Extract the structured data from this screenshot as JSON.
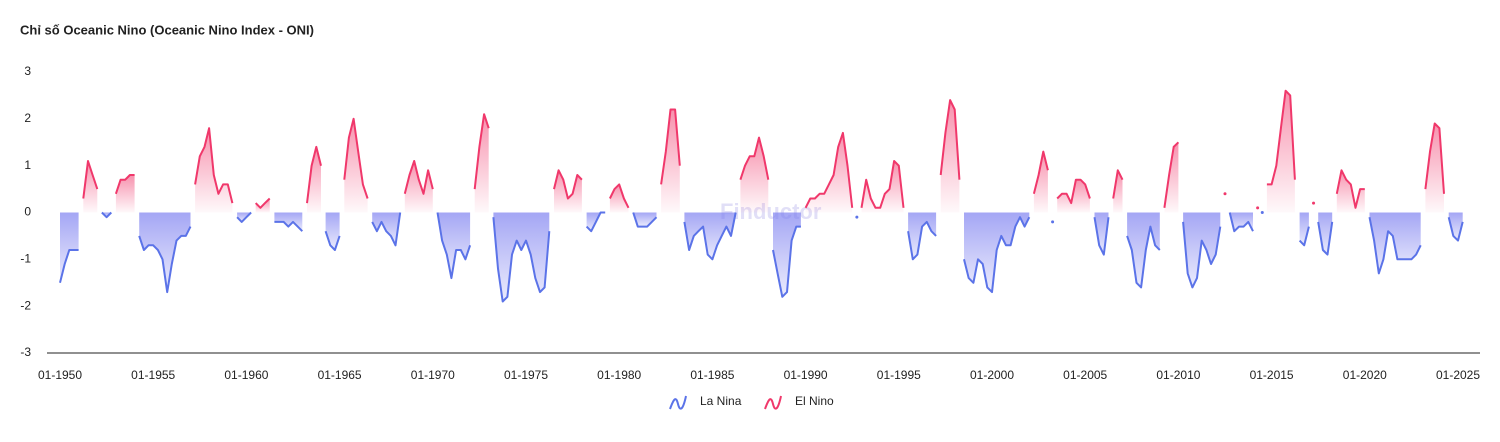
{
  "chart_data": {
    "type": "line",
    "title": "Chỉ số Oceanic Nino (Oceanic Nino Index - ONI)",
    "watermark": "Finductor",
    "x": [
      "01-1950",
      "04-1950",
      "07-1950",
      "10-1950",
      "01-1951",
      "04-1951",
      "07-1951",
      "10-1951",
      "01-1952",
      "04-1952",
      "07-1952",
      "10-1952",
      "01-1953",
      "04-1953",
      "07-1953",
      "10-1953",
      "01-1954",
      "04-1954",
      "07-1954",
      "10-1954",
      "01-1955",
      "04-1955",
      "07-1955",
      "10-1955",
      "01-1956",
      "04-1956",
      "07-1956",
      "10-1956",
      "01-1957",
      "04-1957",
      "07-1957",
      "10-1957",
      "01-1958",
      "04-1958",
      "07-1958",
      "10-1958",
      "01-1959",
      "04-1959",
      "07-1959",
      "10-1959",
      "01-1960",
      "04-1960",
      "07-1960",
      "10-1960",
      "01-1961",
      "04-1961",
      "07-1961",
      "10-1961",
      "01-1962",
      "04-1962",
      "07-1962",
      "10-1962",
      "01-1963",
      "04-1963",
      "07-1963",
      "10-1963",
      "01-1964",
      "04-1964",
      "07-1964",
      "10-1964",
      "01-1965",
      "04-1965",
      "07-1965",
      "10-1965",
      "01-1966",
      "04-1966",
      "07-1966",
      "10-1966",
      "01-1967",
      "04-1967",
      "07-1967",
      "10-1967",
      "01-1968",
      "04-1968",
      "07-1968",
      "10-1968",
      "01-1969",
      "04-1969",
      "07-1969",
      "10-1969",
      "01-1970",
      "04-1970",
      "07-1970",
      "10-1970",
      "01-1971",
      "04-1971",
      "07-1971",
      "10-1971",
      "01-1972",
      "04-1972",
      "07-1972",
      "10-1972",
      "01-1973",
      "04-1973",
      "07-1973",
      "10-1973",
      "01-1974",
      "04-1974",
      "07-1974",
      "10-1974",
      "01-1975",
      "04-1975",
      "07-1975",
      "10-1975",
      "01-1976",
      "04-1976",
      "07-1976",
      "10-1976",
      "01-1977",
      "04-1977",
      "07-1977",
      "10-1977",
      "01-1978",
      "04-1978",
      "07-1978",
      "10-1978",
      "01-1979",
      "04-1979",
      "07-1979",
      "10-1979",
      "01-1980",
      "04-1980",
      "07-1980",
      "10-1980",
      "01-1981",
      "04-1981",
      "07-1981",
      "10-1981",
      "01-1982",
      "04-1982",
      "07-1982",
      "10-1982",
      "01-1983",
      "04-1983",
      "07-1983",
      "10-1983",
      "01-1984",
      "04-1984",
      "07-1984",
      "10-1984",
      "01-1985",
      "04-1985",
      "07-1985",
      "10-1985",
      "01-1986",
      "04-1986",
      "07-1986",
      "10-1986",
      "01-1987",
      "04-1987",
      "07-1987",
      "10-1987",
      "01-1988",
      "04-1988",
      "07-1988",
      "10-1988",
      "01-1989",
      "04-1989",
      "07-1989",
      "10-1989",
      "01-1990",
      "04-1990",
      "07-1990",
      "10-1990",
      "01-1991",
      "04-1991",
      "07-1991",
      "10-1991",
      "01-1992",
      "04-1992",
      "07-1992",
      "10-1992",
      "01-1993",
      "04-1993",
      "07-1993",
      "10-1993",
      "01-1994",
      "04-1994",
      "07-1994",
      "10-1994",
      "01-1995",
      "04-1995",
      "07-1995",
      "10-1995",
      "01-1996",
      "04-1996",
      "07-1996",
      "10-1996",
      "01-1997",
      "04-1997",
      "07-1997",
      "10-1997",
      "01-1998",
      "04-1998",
      "07-1998",
      "10-1998",
      "01-1999",
      "04-1999",
      "07-1999",
      "10-1999",
      "01-2000",
      "04-2000",
      "07-2000",
      "10-2000",
      "01-2001",
      "04-2001",
      "07-2001",
      "10-2001",
      "01-2002",
      "04-2002",
      "07-2002",
      "10-2002",
      "01-2003",
      "04-2003",
      "07-2003",
      "10-2003",
      "01-2004",
      "04-2004",
      "07-2004",
      "10-2004",
      "01-2005",
      "04-2005",
      "07-2005",
      "10-2005",
      "01-2006",
      "04-2006",
      "07-2006",
      "10-2006",
      "01-2007",
      "04-2007",
      "07-2007",
      "10-2007",
      "01-2008",
      "04-2008",
      "07-2008",
      "10-2008",
      "01-2009",
      "04-2009",
      "07-2009",
      "10-2009",
      "01-2010",
      "04-2010",
      "07-2010",
      "10-2010",
      "01-2011",
      "04-2011",
      "07-2011",
      "10-2011",
      "01-2012",
      "04-2012",
      "07-2012",
      "10-2012",
      "01-2013",
      "04-2013",
      "07-2013",
      "10-2013",
      "01-2014",
      "04-2014",
      "07-2014",
      "10-2014",
      "01-2015",
      "04-2015",
      "07-2015",
      "10-2015",
      "01-2016",
      "04-2016",
      "07-2016",
      "10-2016",
      "01-2017",
      "04-2017",
      "07-2017",
      "10-2017",
      "01-2018",
      "04-2018",
      "07-2018",
      "10-2018",
      "01-2019",
      "04-2019",
      "07-2019",
      "10-2019",
      "01-2020",
      "04-2020",
      "07-2020",
      "10-2020",
      "01-2021",
      "04-2021",
      "07-2021",
      "10-2021",
      "01-2022",
      "04-2022",
      "07-2022",
      "10-2022",
      "01-2023",
      "04-2023",
      "07-2023",
      "10-2023",
      "01-2024",
      "04-2024",
      "07-2024",
      "10-2024",
      "01-2025",
      "04-2025"
    ],
    "series": [
      {
        "name": "La Nina",
        "color": "#5b73e8",
        "values": [
          -1.5,
          -1.1,
          -0.8,
          -0.8,
          -0.8,
          null,
          null,
          null,
          null,
          0.0,
          -0.1,
          0.0,
          null,
          null,
          null,
          null,
          null,
          -0.5,
          -0.8,
          -0.7,
          -0.7,
          -0.8,
          -1.0,
          -1.7,
          -1.1,
          -0.6,
          -0.5,
          -0.5,
          -0.3,
          null,
          null,
          null,
          null,
          null,
          null,
          null,
          null,
          null,
          -0.1,
          -0.2,
          -0.1,
          0.0,
          null,
          null,
          null,
          null,
          -0.2,
          -0.2,
          -0.2,
          -0.3,
          -0.2,
          -0.3,
          -0.4,
          null,
          null,
          null,
          null,
          -0.4,
          -0.7,
          -0.8,
          -0.5,
          null,
          null,
          null,
          null,
          null,
          null,
          -0.2,
          -0.4,
          -0.2,
          -0.4,
          -0.5,
          -0.7,
          0.0,
          null,
          null,
          null,
          null,
          null,
          null,
          null,
          0.0,
          -0.6,
          -0.9,
          -1.4,
          -0.8,
          -0.8,
          -1.0,
          -0.7,
          null,
          null,
          null,
          null,
          -0.1,
          -1.2,
          -1.9,
          -1.8,
          -0.9,
          -0.6,
          -0.8,
          -0.6,
          -0.9,
          -1.4,
          -1.7,
          -1.6,
          -0.4,
          null,
          null,
          null,
          null,
          null,
          null,
          null,
          -0.3,
          -0.4,
          -0.2,
          0.0,
          0.0,
          null,
          null,
          null,
          null,
          null,
          0.0,
          -0.3,
          -0.3,
          -0.3,
          -0.2,
          -0.1,
          null,
          null,
          null,
          null,
          null,
          -0.2,
          -0.8,
          -0.5,
          -0.4,
          -0.3,
          -0.9,
          -1.0,
          -0.7,
          -0.5,
          -0.3,
          -0.5,
          0.0,
          null,
          null,
          null,
          null,
          null,
          null,
          null,
          -0.8,
          -1.3,
          -1.8,
          -1.7,
          -0.6,
          -0.3,
          -0.3,
          null,
          null,
          null,
          null,
          null,
          null,
          null,
          null,
          null,
          null,
          null,
          -0.1,
          null,
          null,
          null,
          null,
          null,
          null,
          null,
          null,
          null,
          null,
          -0.4,
          -1.0,
          -0.9,
          -0.3,
          -0.2,
          -0.4,
          -0.5,
          null,
          null,
          null,
          null,
          null,
          -1.0,
          -1.4,
          -1.5,
          -1.0,
          -1.1,
          -1.6,
          -1.7,
          -0.8,
          -0.5,
          -0.7,
          -0.7,
          -0.3,
          -0.1,
          -0.3,
          -0.1,
          null,
          null,
          null,
          null,
          -0.2,
          null,
          null,
          null,
          null,
          null,
          null,
          null,
          null,
          -0.1,
          -0.7,
          -0.9,
          -0.1,
          null,
          null,
          null,
          -0.5,
          -0.8,
          -1.5,
          -1.6,
          -0.8,
          -0.3,
          -0.7,
          -0.8,
          null,
          null,
          null,
          null,
          -0.2,
          -1.3,
          -1.6,
          -1.4,
          -0.6,
          -0.8,
          -1.1,
          -0.9,
          -0.3,
          null,
          0.0,
          -0.4,
          -0.3,
          -0.3,
          -0.2,
          -0.4,
          null,
          0.0,
          null,
          null,
          null,
          null,
          null,
          null,
          null,
          -0.6,
          -0.7,
          -0.3,
          null,
          -0.2,
          -0.8,
          -0.9,
          -0.2,
          null,
          null,
          null,
          null,
          null,
          null,
          null,
          -0.1,
          -0.6,
          -1.3,
          -1.0,
          -0.4,
          -0.5,
          -1.0,
          -1.0,
          -1.0,
          -1.0,
          -0.9,
          -0.7,
          null,
          null,
          null,
          null,
          null,
          -0.1,
          -0.5,
          -0.6,
          -0.2
        ]
      },
      {
        "name": "El Nino",
        "color": "#f0386b",
        "values": [
          null,
          null,
          null,
          null,
          null,
          0.3,
          1.1,
          0.8,
          0.5,
          null,
          null,
          null,
          0.4,
          0.7,
          0.7,
          0.8,
          0.8,
          null,
          null,
          null,
          null,
          null,
          null,
          null,
          null,
          null,
          null,
          null,
          null,
          0.6,
          1.2,
          1.4,
          1.8,
          0.8,
          0.4,
          0.6,
          0.6,
          0.2,
          null,
          null,
          null,
          null,
          0.2,
          0.1,
          0.2,
          0.3,
          null,
          null,
          null,
          null,
          null,
          null,
          null,
          0.2,
          1.0,
          1.4,
          1.0,
          null,
          null,
          null,
          null,
          0.7,
          1.6,
          2.0,
          1.3,
          0.6,
          0.3,
          null,
          null,
          null,
          null,
          null,
          null,
          null,
          0.4,
          0.8,
          1.1,
          0.7,
          0.4,
          0.9,
          0.5,
          null,
          null,
          null,
          null,
          null,
          null,
          null,
          null,
          0.5,
          1.4,
          2.1,
          1.8,
          null,
          null,
          null,
          null,
          null,
          null,
          null,
          null,
          null,
          null,
          null,
          null,
          null,
          0.5,
          0.9,
          0.7,
          0.3,
          0.4,
          0.8,
          0.7,
          null,
          null,
          null,
          null,
          null,
          0.3,
          0.5,
          0.6,
          0.3,
          0.1,
          null,
          null,
          null,
          null,
          null,
          null,
          0.6,
          1.3,
          2.2,
          2.2,
          1.0,
          null,
          null,
          null,
          null,
          null,
          null,
          null,
          null,
          null,
          null,
          null,
          null,
          0.7,
          1.0,
          1.2,
          1.2,
          1.6,
          1.2,
          0.7,
          null,
          null,
          null,
          null,
          null,
          null,
          null,
          0.1,
          0.3,
          0.3,
          0.4,
          0.4,
          0.6,
          0.8,
          1.4,
          1.7,
          1.0,
          0.1,
          null,
          0.1,
          0.7,
          0.3,
          0.1,
          0.1,
          0.4,
          0.5,
          1.1,
          1.0,
          0.1,
          null,
          null,
          null,
          null,
          null,
          null,
          null,
          0.8,
          1.7,
          2.4,
          2.2,
          0.7,
          null,
          null,
          null,
          null,
          null,
          null,
          null,
          null,
          null,
          null,
          null,
          null,
          null,
          null,
          null,
          0.4,
          0.8,
          1.3,
          0.9,
          null,
          0.3,
          0.4,
          0.4,
          0.2,
          0.7,
          0.7,
          0.6,
          0.3,
          null,
          null,
          null,
          null,
          0.3,
          0.9,
          0.7,
          null,
          null,
          null,
          null,
          null,
          null,
          null,
          null,
          0.1,
          0.8,
          1.4,
          1.5,
          null,
          null,
          null,
          null,
          null,
          null,
          null,
          null,
          null,
          0.4,
          null,
          null,
          null,
          null,
          null,
          null,
          0.1,
          null,
          0.6,
          0.6,
          1.0,
          1.8,
          2.6,
          2.5,
          0.7,
          null,
          null,
          null,
          0.2,
          null,
          null,
          null,
          null,
          0.4,
          0.9,
          0.7,
          0.6,
          0.1,
          0.5,
          0.5,
          null,
          null,
          null,
          null,
          null,
          null,
          null,
          null,
          null,
          null,
          null,
          null,
          0.5,
          1.3,
          1.9,
          1.8,
          0.4,
          null,
          null,
          null,
          null
        ]
      }
    ],
    "ylim": [
      -3,
      3
    ],
    "yticks": [
      -3,
      -2,
      -1,
      0,
      1,
      2,
      3
    ],
    "xticks": [
      "01-1950",
      "01-1955",
      "01-1960",
      "01-1965",
      "01-1970",
      "01-1975",
      "01-1980",
      "01-1985",
      "01-1990",
      "01-1995",
      "01-2000",
      "01-2005",
      "01-2010",
      "01-2015",
      "01-2020",
      "01-2025"
    ],
    "grid": false
  }
}
